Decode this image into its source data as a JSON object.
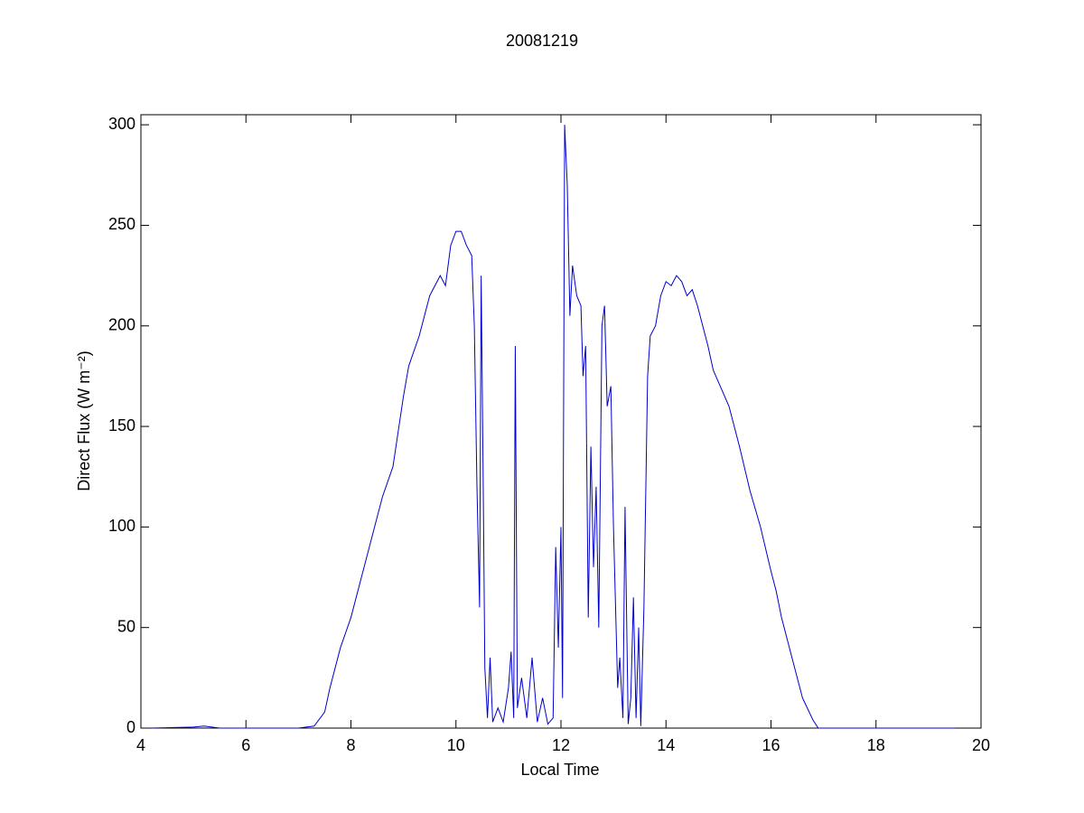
{
  "chart_data": {
    "type": "line",
    "title": "20081219",
    "xlabel": "Local Time",
    "ylabel": "Direct Flux (W m⁻²)",
    "x": [
      4.2,
      5.0,
      5.2,
      5.5,
      7.0,
      7.3,
      7.5,
      7.6,
      7.8,
      8.0,
      8.2,
      8.4,
      8.6,
      8.8,
      9.0,
      9.1,
      9.3,
      9.5,
      9.7,
      9.8,
      9.9,
      10.0,
      10.1,
      10.2,
      10.3,
      10.35,
      10.4,
      10.45,
      10.48,
      10.52,
      10.55,
      10.6,
      10.65,
      10.7,
      10.8,
      10.9,
      11.0,
      11.05,
      11.1,
      11.13,
      11.17,
      11.25,
      11.35,
      11.45,
      11.55,
      11.65,
      11.75,
      11.85,
      11.9,
      11.95,
      12.0,
      12.03,
      12.07,
      12.12,
      12.17,
      12.22,
      12.3,
      12.38,
      12.42,
      12.47,
      12.52,
      12.57,
      12.62,
      12.67,
      12.72,
      12.78,
      12.83,
      12.88,
      12.95,
      13.0,
      13.08,
      13.12,
      13.18,
      13.22,
      13.28,
      13.33,
      13.38,
      13.43,
      13.48,
      13.52,
      13.58,
      13.65,
      13.7,
      13.8,
      13.9,
      14.0,
      14.1,
      14.2,
      14.3,
      14.4,
      14.5,
      14.6,
      14.7,
      14.8,
      14.9,
      15.0,
      15.2,
      15.4,
      15.6,
      15.8,
      16.0,
      16.1,
      16.2,
      16.4,
      16.6,
      16.8,
      16.9,
      17.2,
      19.5
    ],
    "series": [
      {
        "name": "Direct Flux",
        "color": "#0000cc",
        "values": [
          0,
          0.5,
          1,
          0,
          0,
          1,
          8,
          20,
          40,
          55,
          75,
          95,
          115,
          130,
          165,
          180,
          195,
          215,
          225,
          220,
          240,
          247,
          247,
          240,
          235,
          200,
          120,
          60,
          225,
          120,
          30,
          5,
          35,
          3,
          10,
          3,
          20,
          38,
          5,
          190,
          10,
          25,
          5,
          35,
          3,
          15,
          2,
          5,
          90,
          40,
          100,
          15,
          300,
          270,
          205,
          230,
          215,
          210,
          175,
          190,
          55,
          140,
          80,
          120,
          50,
          200,
          210,
          160,
          170,
          100,
          20,
          35,
          5,
          110,
          2,
          15,
          65,
          5,
          50,
          1,
          60,
          175,
          195,
          200,
          215,
          222,
          220,
          225,
          222,
          215,
          218,
          210,
          200,
          190,
          178,
          172,
          160,
          140,
          118,
          100,
          78,
          68,
          55,
          35,
          15,
          4,
          0,
          0,
          0
        ]
      }
    ],
    "xlim": [
      4,
      20
    ],
    "xticks": [
      4,
      6,
      8,
      10,
      12,
      14,
      16,
      18,
      20
    ],
    "ylim": [
      0,
      305
    ],
    "yticks": [
      0,
      50,
      100,
      150,
      200,
      250,
      300
    ]
  }
}
